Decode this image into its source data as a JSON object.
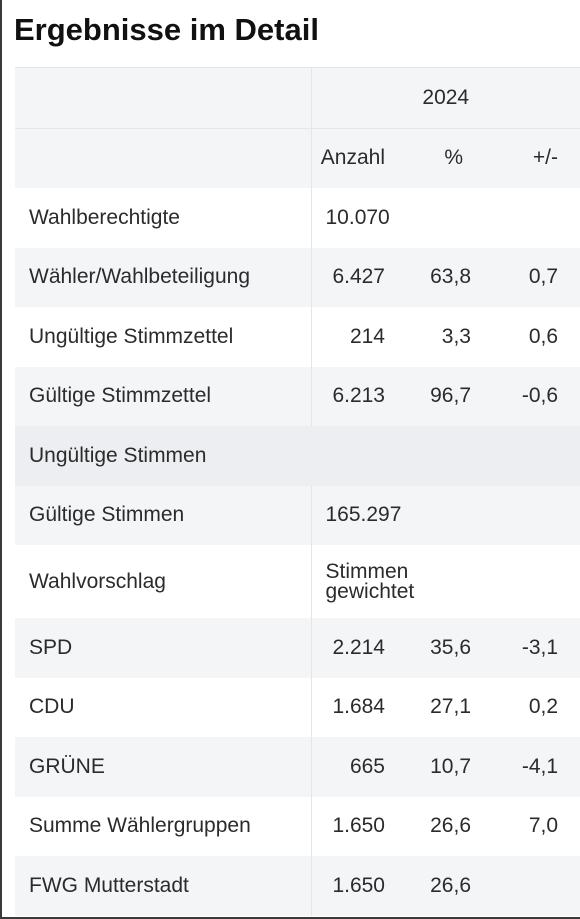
{
  "page_title": "Ergebnisse im Detail",
  "year": "2024",
  "columns": {
    "count": "Anzahl",
    "percent": "%",
    "change": "+/-"
  },
  "rows": [
    {
      "label": "Wahlberechtigte",
      "anzahl": "10.070",
      "percent": "",
      "change": ""
    },
    {
      "label": "Wähler/Wahlbeteiligung",
      "anzahl": "6.427",
      "percent": "63,8",
      "change": "0,7"
    },
    {
      "label": "Ungültige Stimmzettel",
      "anzahl": "214",
      "percent": "3,3",
      "change": "0,6"
    },
    {
      "label": "Gültige Stimmzettel",
      "anzahl": "6.213",
      "percent": "96,7",
      "change": "-0,6"
    }
  ],
  "section_invalid_votes": "Ungültige Stimmen",
  "valid_votes": {
    "label": "Gültige Stimmen",
    "value": "165.297"
  },
  "nomination": {
    "label": "Wahlvorschlag",
    "value": "Stimmen gewichtet"
  },
  "parties": [
    {
      "label": "SPD",
      "anzahl": "2.214",
      "percent": "35,6",
      "change": "-3,1"
    },
    {
      "label": "CDU",
      "anzahl": "1.684",
      "percent": "27,1",
      "change": "0,2"
    },
    {
      "label": "GRÜNE",
      "anzahl": "665",
      "percent": "10,7",
      "change": "-4,1"
    },
    {
      "label": "Summe Wählergruppen",
      "anzahl": "1.650",
      "percent": "26,6",
      "change": "7,0"
    },
    {
      "label": "FWG Mutterstadt",
      "anzahl": "1.650",
      "percent": "26,6",
      "change": ""
    }
  ]
}
